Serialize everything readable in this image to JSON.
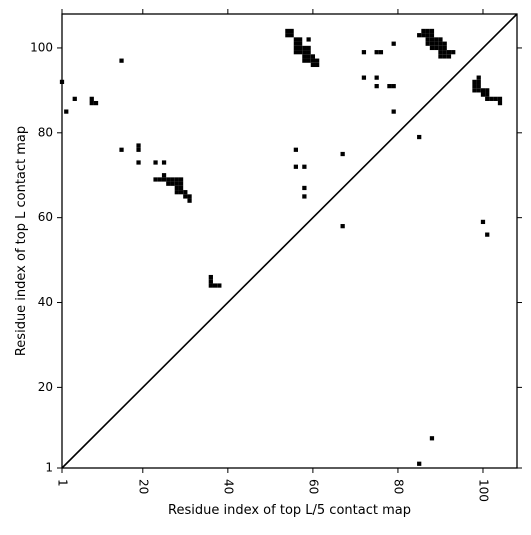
{
  "chart_data": {
    "type": "heatmap",
    "title": "",
    "xlabel": "Residue index of top L/5 contact map",
    "ylabel": "Residue index of top L contact map",
    "xlim": [
      1,
      108
    ],
    "ylim": [
      1,
      108
    ],
    "x_ticks": [
      1,
      20,
      40,
      60,
      80,
      100
    ],
    "x_tick_labels": [
      "1",
      "20",
      "40",
      "60",
      "80",
      "100"
    ],
    "y_ticks": [
      1,
      20,
      40,
      60,
      80,
      100
    ],
    "y_tick_labels": [
      "1",
      "20",
      "40",
      "60",
      "80",
      "100"
    ],
    "x_tick_label_rotation": 90,
    "grid": false,
    "legend": "none",
    "diagonal": {
      "from": [
        1,
        1
      ],
      "to": [
        108,
        108
      ]
    },
    "cell_color": "#000000",
    "background_color": "#ffffff",
    "upper_triangle_contacts": [
      [
        1,
        92
      ],
      [
        2,
        85
      ],
      [
        4,
        88
      ],
      [
        8,
        88
      ],
      [
        8,
        87
      ],
      [
        9,
        87
      ],
      [
        15,
        97
      ],
      [
        15,
        76
      ],
      [
        19,
        77
      ],
      [
        19,
        76
      ],
      [
        19,
        73
      ],
      [
        23,
        73
      ],
      [
        25,
        73
      ],
      [
        23,
        69
      ],
      [
        24,
        69
      ],
      [
        25,
        69
      ],
      [
        25,
        70
      ],
      [
        26,
        69
      ],
      [
        26,
        68
      ],
      [
        27,
        69
      ],
      [
        27,
        68
      ],
      [
        28,
        69
      ],
      [
        28,
        68
      ],
      [
        28,
        67
      ],
      [
        28,
        66
      ],
      [
        29,
        69
      ],
      [
        29,
        68
      ],
      [
        29,
        67
      ],
      [
        29,
        66
      ],
      [
        30,
        66
      ],
      [
        30,
        65
      ],
      [
        31,
        65
      ],
      [
        31,
        64
      ],
      [
        36,
        46
      ],
      [
        36,
        45
      ],
      [
        36,
        44
      ],
      [
        37,
        44
      ],
      [
        38,
        44
      ],
      [
        54,
        104
      ],
      [
        54,
        103
      ],
      [
        55,
        104
      ],
      [
        55,
        103
      ],
      [
        56,
        102
      ],
      [
        56,
        101
      ],
      [
        56,
        100
      ],
      [
        56,
        99
      ],
      [
        57,
        102
      ],
      [
        57,
        101
      ],
      [
        57,
        100
      ],
      [
        57,
        99
      ],
      [
        58,
        100
      ],
      [
        58,
        99
      ],
      [
        58,
        98
      ],
      [
        58,
        97
      ],
      [
        59,
        100
      ],
      [
        59,
        99
      ],
      [
        59,
        98
      ],
      [
        59,
        97
      ],
      [
        59,
        102
      ],
      [
        60,
        98
      ],
      [
        60,
        97
      ],
      [
        60,
        96
      ],
      [
        61,
        97
      ],
      [
        61,
        96
      ],
      [
        56,
        76
      ],
      [
        56,
        72
      ],
      [
        58,
        72
      ],
      [
        58,
        67
      ],
      [
        58,
        65
      ],
      [
        67,
        75
      ],
      [
        67,
        58
      ],
      [
        72,
        99
      ],
      [
        72,
        93
      ],
      [
        75,
        99
      ],
      [
        76,
        99
      ],
      [
        75,
        93
      ],
      [
        75,
        91
      ],
      [
        78,
        91
      ],
      [
        79,
        91
      ],
      [
        79,
        101
      ],
      [
        79,
        85
      ],
      [
        85,
        79
      ],
      [
        85,
        103
      ],
      [
        86,
        104
      ],
      [
        86,
        103
      ],
      [
        87,
        104
      ],
      [
        87,
        103
      ],
      [
        87,
        102
      ],
      [
        87,
        101
      ],
      [
        88,
        104
      ],
      [
        88,
        103
      ],
      [
        88,
        102
      ],
      [
        88,
        101
      ],
      [
        88,
        100
      ],
      [
        89,
        102
      ],
      [
        89,
        101
      ],
      [
        89,
        100
      ],
      [
        90,
        102
      ],
      [
        90,
        101
      ],
      [
        90,
        100
      ],
      [
        90,
        99
      ],
      [
        90,
        98
      ],
      [
        91,
        101
      ],
      [
        91,
        100
      ],
      [
        91,
        99
      ],
      [
        91,
        98
      ],
      [
        92,
        99
      ],
      [
        92,
        98
      ],
      [
        93,
        99
      ],
      [
        98,
        92
      ],
      [
        98,
        91
      ],
      [
        98,
        90
      ],
      [
        99,
        93
      ],
      [
        99,
        92
      ],
      [
        99,
        91
      ],
      [
        99,
        90
      ],
      [
        100,
        90
      ],
      [
        100,
        89
      ],
      [
        101,
        90
      ],
      [
        101,
        89
      ],
      [
        101,
        88
      ],
      [
        102,
        88
      ],
      [
        103,
        88
      ],
      [
        104,
        88
      ],
      [
        104,
        87
      ],
      [
        100,
        59
      ],
      [
        101,
        56
      ]
    ],
    "lower_triangle_contacts": [
      [
        85,
        2
      ],
      [
        88,
        8
      ]
    ]
  }
}
